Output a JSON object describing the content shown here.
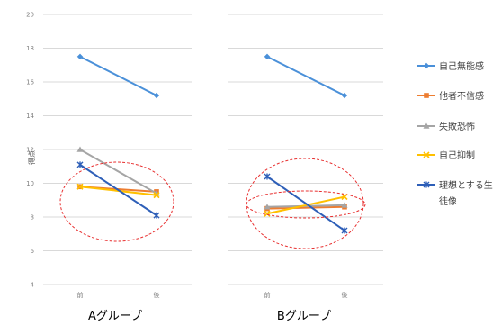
{
  "chart_data": {
    "type": "line",
    "ylabel": "得点",
    "ylim": [
      4,
      20
    ],
    "yticks": [
      "4",
      "6",
      "8",
      "10",
      "12",
      "14",
      "16",
      "18",
      "20"
    ],
    "grid": true,
    "legend_position": "right",
    "series": [
      {
        "name": "自己無能感",
        "color": "#4a90d9",
        "marker": "diamond"
      },
      {
        "name": "他者不信感",
        "color": "#ed7d31",
        "marker": "square"
      },
      {
        "name": "失敗恐怖",
        "color": "#a5a5a5",
        "marker": "triangle"
      },
      {
        "name": "自己抑制",
        "color": "#ffc000",
        "marker": "x"
      },
      {
        "name": "理想とする生徒像",
        "name_line1": "理想とする生",
        "name_line2": "徒像",
        "color": "#2e5fb8",
        "marker": "star"
      }
    ],
    "panels": [
      {
        "title": "Aグループ",
        "categories": [
          "前",
          "後"
        ],
        "values": [
          [
            17.5,
            15.2
          ],
          [
            9.8,
            9.5
          ],
          [
            12.0,
            9.4
          ],
          [
            9.8,
            9.3
          ],
          [
            11.1,
            8.1
          ]
        ]
      },
      {
        "title": "Bグループ",
        "categories": [
          "前",
          "後"
        ],
        "values": [
          [
            17.5,
            15.2
          ],
          [
            8.5,
            8.6
          ],
          [
            8.6,
            8.7
          ],
          [
            8.2,
            9.2
          ],
          [
            10.4,
            7.2
          ]
        ]
      }
    ],
    "annotation_color": "#e83030"
  }
}
